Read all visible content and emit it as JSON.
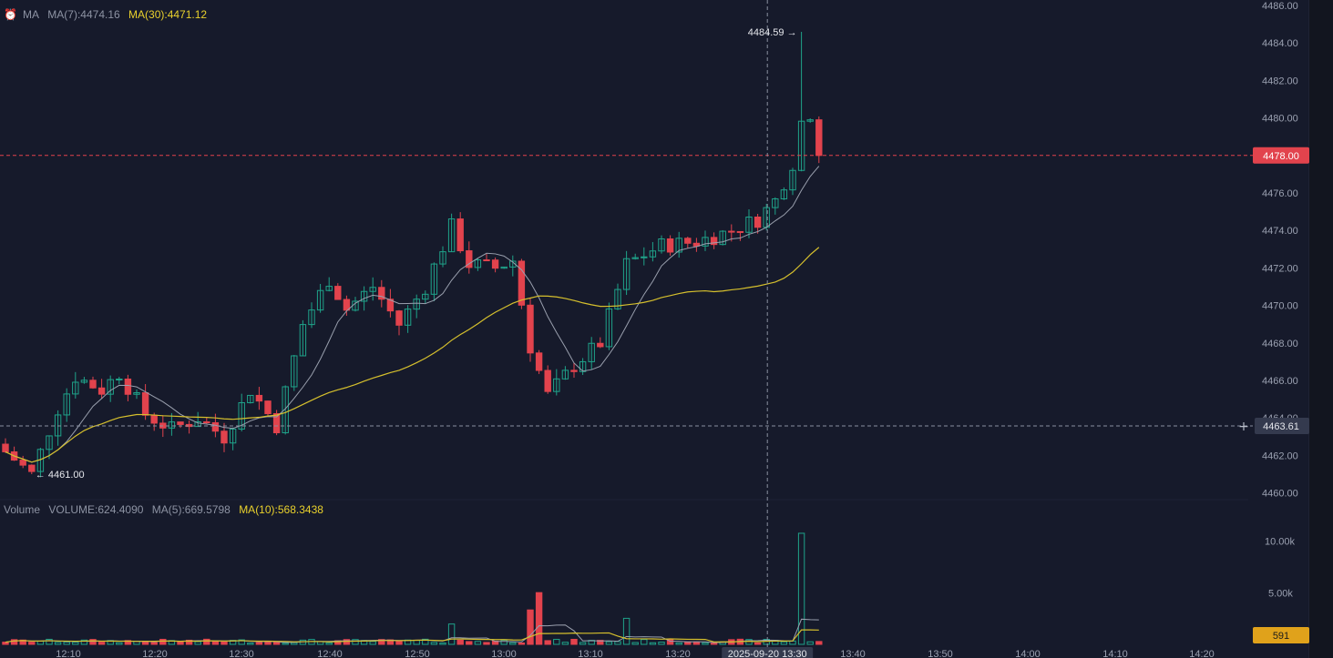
{
  "main_legend": {
    "indicator": "MA",
    "ma7": "MA(7):4474.16",
    "ma30": "MA(30):4471.12"
  },
  "volume_legend": {
    "indicator": "Volume",
    "volume": "VOLUME:624.4090",
    "ma5": "MA(5):669.5798",
    "ma10": "MA(10):568.3438"
  },
  "price_axis": [
    "4486.00",
    "4484.00",
    "4482.00",
    "4480.00",
    "4478.00",
    "4476.00",
    "4474.00",
    "4472.00",
    "4470.00",
    "4468.00",
    "4466.00",
    "4464.00",
    "4462.00",
    "4460.00"
  ],
  "volume_axis": [
    "10.00k",
    "5.00k"
  ],
  "time_axis": [
    "12:10",
    "12:20",
    "12:30",
    "12:40",
    "12:50",
    "13:00",
    "13:10",
    "13:20",
    "13:40",
    "13:50",
    "14:00",
    "14:10",
    "14:20"
  ],
  "labels": {
    "high": "4484.59",
    "low": "4461.00",
    "last_price": "4478.00",
    "crosshair_price": "4463.61",
    "crosshair_time": "2025-09-20 13:30",
    "last_volume": "591"
  },
  "colors": {
    "up": "#1fa38a",
    "down": "#e2434d",
    "ma7": "#9aa0ae",
    "ma30": "#d6c02d",
    "background": "#161a2b"
  },
  "icons": [
    "alarm-icon",
    "crosshair-plus-icon"
  ]
}
